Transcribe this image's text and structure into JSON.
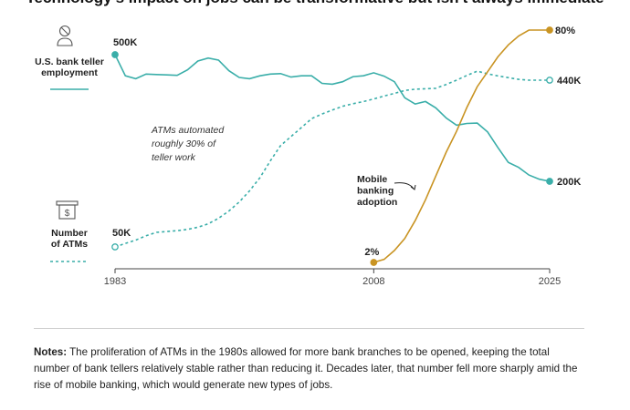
{
  "chart_data": {
    "type": "line",
    "title": "Technology's impact on jobs can be transformative but isn't always immediate",
    "x_axis": {
      "ticks": [
        "1983",
        "2008",
        "2025"
      ],
      "range": [
        1983,
        2025
      ]
    },
    "grid": false,
    "series": [
      {
        "key": "tellers",
        "name": "U.S. bank teller employment",
        "legend_lines": [
          "U.S. bank teller",
          "employment"
        ],
        "unit": "thousand tellers",
        "color": "#3aaea9",
        "style": "solid",
        "start_label": "500K",
        "end_label": "200K",
        "points": [
          [
            1983,
            500
          ],
          [
            1984,
            450
          ],
          [
            1985,
            443
          ],
          [
            1986,
            454
          ],
          [
            1987,
            453
          ],
          [
            1988,
            452
          ],
          [
            1989,
            451
          ],
          [
            1990,
            464
          ],
          [
            1991,
            485
          ],
          [
            1992,
            492
          ],
          [
            1993,
            487
          ],
          [
            1994,
            462
          ],
          [
            1995,
            446
          ],
          [
            1996,
            443
          ],
          [
            1997,
            450
          ],
          [
            1998,
            454
          ],
          [
            1999,
            455
          ],
          [
            2000,
            447
          ],
          [
            2001,
            450
          ],
          [
            2002,
            450
          ],
          [
            2003,
            432
          ],
          [
            2004,
            430
          ],
          [
            2005,
            436
          ],
          [
            2006,
            448
          ],
          [
            2007,
            450
          ],
          [
            2008,
            457
          ],
          [
            2009,
            449
          ],
          [
            2010,
            436
          ],
          [
            2011,
            398
          ],
          [
            2012,
            383
          ],
          [
            2013,
            389
          ],
          [
            2014,
            374
          ],
          [
            2015,
            350
          ],
          [
            2016,
            333
          ],
          [
            2017,
            337
          ],
          [
            2018,
            338
          ],
          [
            2019,
            317
          ],
          [
            2020,
            280
          ],
          [
            2021,
            245
          ],
          [
            2022,
            233
          ],
          [
            2023,
            215
          ],
          [
            2024,
            205
          ],
          [
            2025,
            200
          ]
        ]
      },
      {
        "key": "atms",
        "name": "Number of ATMs",
        "legend_lines": [
          "Number",
          "of ATMs"
        ],
        "color": "#3aaea9",
        "style": "dashed",
        "start_label": "50K",
        "end_label": "440K",
        "points": [
          [
            1983,
            50
          ],
          [
            1984,
            58
          ],
          [
            1985,
            66
          ],
          [
            1986,
            76
          ],
          [
            1987,
            84
          ],
          [
            1988,
            86
          ],
          [
            1989,
            88
          ],
          [
            1990,
            91
          ],
          [
            1991,
            96
          ],
          [
            1992,
            104
          ],
          [
            1993,
            117
          ],
          [
            1994,
            134
          ],
          [
            1995,
            155
          ],
          [
            1996,
            181
          ],
          [
            1997,
            212
          ],
          [
            1998,
            251
          ],
          [
            1999,
            287
          ],
          [
            2000,
            308
          ],
          [
            2001,
            329
          ],
          [
            2002,
            350
          ],
          [
            2003,
            361
          ],
          [
            2004,
            370
          ],
          [
            2005,
            379
          ],
          [
            2006,
            385
          ],
          [
            2007,
            390
          ],
          [
            2008,
            396
          ],
          [
            2009,
            403
          ],
          [
            2010,
            409
          ],
          [
            2011,
            416
          ],
          [
            2012,
            419
          ],
          [
            2013,
            420
          ],
          [
            2014,
            421
          ],
          [
            2015,
            430
          ],
          [
            2016,
            440
          ],
          [
            2017,
            451
          ],
          [
            2018,
            461
          ],
          [
            2019,
            455
          ],
          [
            2020,
            450
          ],
          [
            2021,
            446
          ],
          [
            2022,
            442
          ],
          [
            2023,
            440
          ],
          [
            2024,
            440
          ],
          [
            2025,
            440
          ]
        ]
      },
      {
        "key": "mobile",
        "name": "Mobile banking adoption",
        "legend_lines": [
          "Mobile",
          "banking",
          "adoption"
        ],
        "unit": "percent",
        "color": "#c99423",
        "style": "solid",
        "start_label": "2%",
        "end_label": "80%",
        "points": [
          [
            2008,
            2
          ],
          [
            2009,
            3
          ],
          [
            2010,
            6
          ],
          [
            2011,
            10
          ],
          [
            2012,
            16
          ],
          [
            2013,
            23
          ],
          [
            2014,
            31
          ],
          [
            2015,
            39
          ],
          [
            2016,
            46
          ],
          [
            2017,
            54
          ],
          [
            2018,
            61
          ],
          [
            2019,
            66
          ],
          [
            2020,
            71
          ],
          [
            2021,
            75
          ],
          [
            2022,
            78
          ],
          [
            2023,
            80
          ],
          [
            2024,
            80
          ],
          [
            2025,
            80
          ]
        ]
      }
    ],
    "annotations": [
      {
        "key": "atm_note",
        "lines": [
          "ATMs automated",
          "roughly 30% of",
          "teller work"
        ],
        "style": "italic"
      }
    ],
    "icons": [
      "teller-person-icon",
      "atm-machine-icon"
    ]
  },
  "notes": {
    "label": "Notes:",
    "text": "The proliferation of ATMs in the 1980s allowed for more bank branches to be opened, keeping the total number of bank tellers relatively stable rather than reducing it. Decades later, that number fell more sharply amid the rise of mobile banking, which would generate new types of jobs."
  }
}
